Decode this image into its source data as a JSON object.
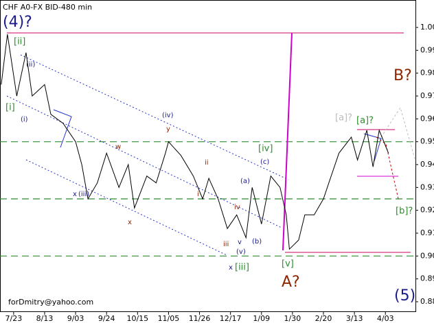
{
  "chart_data": {
    "type": "line",
    "title": "CHF A0-FX BID-480 min",
    "footer": "forDmitry@yahoo.com",
    "x": [
      -0.4,
      -0.2,
      0.1,
      0.4,
      0.6,
      1.0,
      1.2,
      1.6,
      2.0,
      2.2,
      2.4,
      2.7,
      3.0,
      3.4,
      3.7,
      3.9,
      4.3,
      4.6,
      4.9,
      5.0,
      5.4,
      5.8,
      6.1,
      6.3,
      6.6,
      6.9,
      7.2,
      7.5,
      7.7,
      8.0,
      8.3,
      8.6,
      8.8,
      8.9,
      9.2,
      9.4,
      9.7,
      10.0,
      10.2,
      10.5,
      10.9,
      11.1,
      11.4,
      11.6,
      11.8,
      12.1
    ],
    "values": [
      0.975,
      0.997,
      0.97,
      0.989,
      0.97,
      0.975,
      0.962,
      0.958,
      0.95,
      0.94,
      0.925,
      0.932,
      0.945,
      0.93,
      0.94,
      0.921,
      0.935,
      0.932,
      0.945,
      0.95,
      0.944,
      0.935,
      0.925,
      0.934,
      0.925,
      0.912,
      0.918,
      0.908,
      0.93,
      0.914,
      0.935,
      0.93,
      0.918,
      0.903,
      0.907,
      0.918,
      0.918,
      0.925,
      0.933,
      0.945,
      0.952,
      0.942,
      0.955,
      0.939,
      0.955,
      0.945
    ],
    "color": "#000000",
    "xlim": [
      -0.44,
      12.97
    ],
    "xticks": [
      {
        "value": 0,
        "label": "7/23"
      },
      {
        "value": 1,
        "label": "8/13"
      },
      {
        "value": 2,
        "label": "9/03"
      },
      {
        "value": 3,
        "label": "9/24"
      },
      {
        "value": 4,
        "label": "10/15"
      },
      {
        "value": 5,
        "label": "11/05"
      },
      {
        "value": 6,
        "label": "11/26"
      },
      {
        "value": 7,
        "label": "12/17"
      },
      {
        "value": 8,
        "label": "1/09"
      },
      {
        "value": 9,
        "label": "1/30"
      },
      {
        "value": 10,
        "label": "2/20"
      },
      {
        "value": 11,
        "label": "3/13"
      },
      {
        "value": 12,
        "label": "4/03"
      }
    ],
    "ylim": [
      0.8755,
      1.012
    ],
    "yticks": [
      0.88,
      0.89,
      {
        "value": 0.9,
        "label": "0.90"
      },
      0.91,
      0.92,
      0.93,
      0.94,
      0.95,
      0.96,
      0.97,
      0.98,
      0.99,
      {
        "value": 1,
        "label": "1.00"
      }
    ],
    "hlines": {
      "color": "#2e8b2e",
      "values": [
        0.95,
        0.925,
        0.9
      ]
    },
    "annotations": [
      "(4)?",
      "[ii]",
      "(ii)",
      "[i]",
      "(i)",
      "(iv)",
      "y",
      "w",
      "x",
      "(iii)",
      "x",
      "ii",
      "i",
      "iv",
      "(a)",
      "(b)",
      "(c)",
      "iii",
      "v",
      "(v)",
      "x",
      "[iii]",
      "[iv]",
      "[v]",
      "A?",
      "B?",
      "[a]?",
      "[a]?",
      "[b]?",
      "(5)"
    ]
  }
}
